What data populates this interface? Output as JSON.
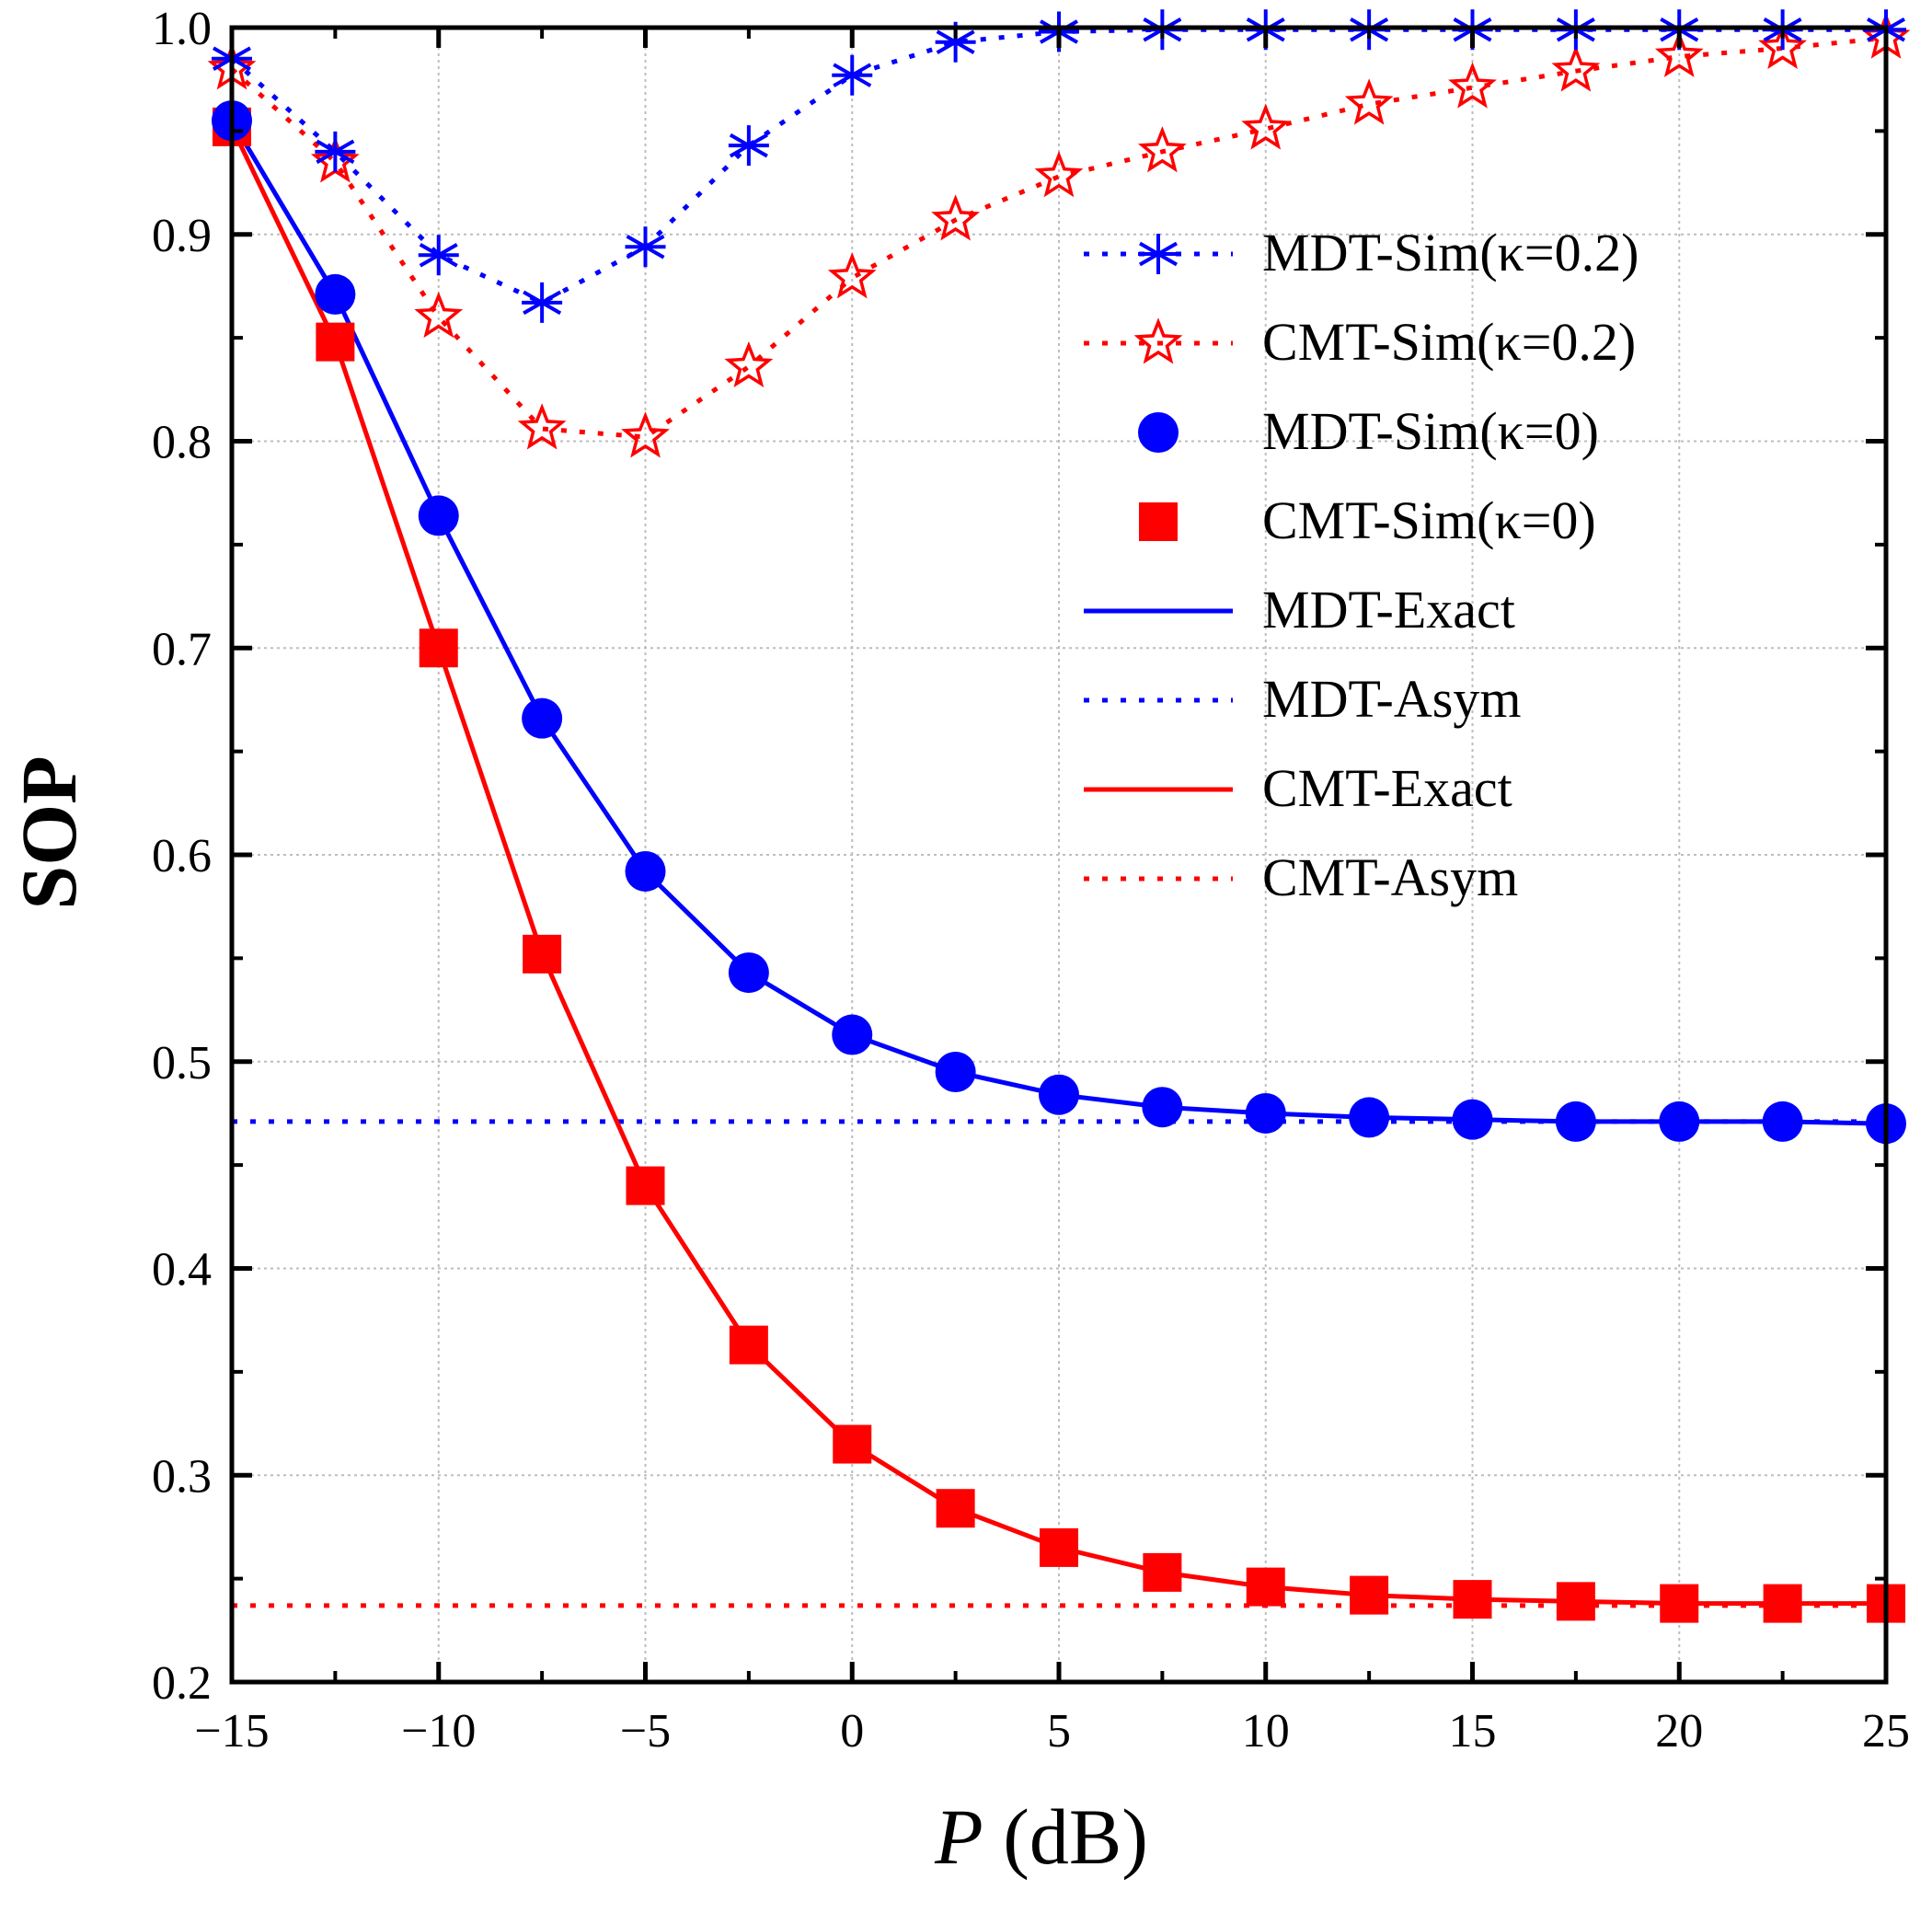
{
  "chart_data": {
    "type": "line",
    "title": "",
    "xlabel_var": "P",
    "xlabel_unit": " (dB)",
    "ylabel": "SOP",
    "xlim": [
      -15,
      25
    ],
    "ylim": [
      0.2,
      1.0
    ],
    "grid": true,
    "legend_position": "top-right",
    "x_ticks": [
      -15,
      -10,
      -5,
      0,
      5,
      10,
      15,
      20,
      25
    ],
    "x_tick_labels": [
      "−15",
      "−10",
      "−5",
      "0",
      "5",
      "10",
      "15",
      "20",
      "25"
    ],
    "y_ticks": [
      0.2,
      0.3,
      0.4,
      0.5,
      0.6,
      0.7,
      0.8,
      0.9,
      1.0
    ],
    "y_tick_labels": [
      "0.2",
      "0.3",
      "0.4",
      "0.5",
      "0.6",
      "0.7",
      "0.8",
      "0.9",
      "1.0"
    ],
    "x": [
      -15,
      -12.5,
      -10,
      -7.5,
      -5,
      -2.5,
      0,
      2.5,
      5,
      7.5,
      10,
      12.5,
      15,
      17.5,
      20,
      22.5,
      25
    ],
    "series": [
      {
        "name": "MDT-Sim(κ=0.2)",
        "color": "#0000ff",
        "line": "dotted",
        "marker": "asterisk",
        "values": [
          0.985,
          0.94,
          0.89,
          0.867,
          0.894,
          0.943,
          0.977,
          0.993,
          0.998,
          0.999,
          0.999,
          0.999,
          0.999,
          0.999,
          0.999,
          0.999,
          0.999
        ]
      },
      {
        "name": "CMT-Sim(κ=0.2)",
        "color": "#ff0000",
        "line": "dotted",
        "marker": "star",
        "values": [
          0.98,
          0.935,
          0.86,
          0.806,
          0.802,
          0.836,
          0.879,
          0.907,
          0.928,
          0.94,
          0.951,
          0.963,
          0.971,
          0.979,
          0.986,
          0.99,
          0.995
        ]
      },
      {
        "name": "MDT-Sim(κ=0)",
        "color": "#0000ff",
        "line": "none",
        "marker": "circle",
        "values": [
          0.955,
          0.871,
          0.764,
          0.666,
          0.592,
          0.543,
          0.513,
          0.495,
          0.484,
          0.478,
          0.475,
          0.473,
          0.472,
          0.471,
          0.471,
          0.471,
          0.47
        ]
      },
      {
        "name": "CMT-Sim(κ=0)",
        "color": "#ff0000",
        "line": "none",
        "marker": "square",
        "values": [
          0.952,
          0.848,
          0.7,
          0.552,
          0.44,
          0.363,
          0.315,
          0.284,
          0.265,
          0.253,
          0.246,
          0.242,
          0.24,
          0.239,
          0.238,
          0.238,
          0.238
        ]
      },
      {
        "name": "MDT-Exact",
        "color": "#0000ff",
        "line": "solid",
        "marker": "none",
        "values": [
          0.955,
          0.871,
          0.764,
          0.666,
          0.592,
          0.543,
          0.513,
          0.495,
          0.484,
          0.478,
          0.475,
          0.473,
          0.472,
          0.471,
          0.471,
          0.471,
          0.47
        ]
      },
      {
        "name": "MDT-Asym",
        "color": "#0000ff",
        "line": "dotted",
        "marker": "none",
        "values": [
          0.471,
          0.471,
          0.471,
          0.471,
          0.471,
          0.471,
          0.471,
          0.471,
          0.471,
          0.471,
          0.471,
          0.471,
          0.471,
          0.471,
          0.471,
          0.471,
          0.471
        ]
      },
      {
        "name": "CMT-Exact",
        "color": "#ff0000",
        "line": "solid",
        "marker": "none",
        "values": [
          0.952,
          0.848,
          0.7,
          0.552,
          0.44,
          0.363,
          0.315,
          0.284,
          0.265,
          0.253,
          0.246,
          0.242,
          0.24,
          0.239,
          0.238,
          0.238,
          0.238
        ]
      },
      {
        "name": "CMT-Asym",
        "color": "#ff0000",
        "line": "dotted",
        "marker": "none",
        "values": [
          0.237,
          0.237,
          0.237,
          0.237,
          0.237,
          0.237,
          0.237,
          0.237,
          0.237,
          0.237,
          0.237,
          0.237,
          0.237,
          0.237,
          0.237,
          0.237,
          0.237
        ]
      }
    ]
  }
}
